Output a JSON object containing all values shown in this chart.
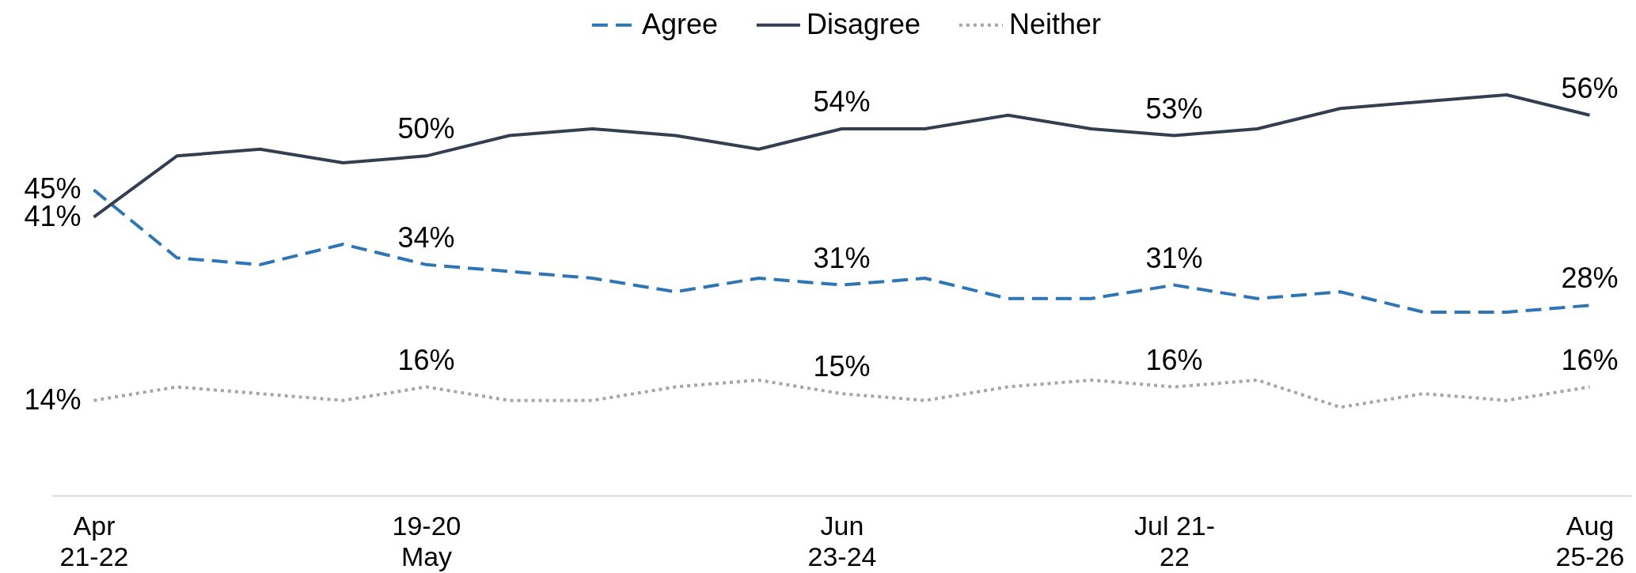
{
  "chart_data": {
    "type": "line",
    "categories": [
      "Apr 21-22",
      null,
      null,
      null,
      "19-20 May",
      null,
      null,
      null,
      null,
      "Jun 23-24",
      null,
      null,
      null,
      "Jul 21-22",
      null,
      null,
      null,
      null,
      "Aug 25-26"
    ],
    "series": [
      {
        "name": "Agree",
        "color": "#2e75b6",
        "line_style": "dashed",
        "values": [
          45,
          35,
          34,
          37,
          34,
          33,
          32,
          30,
          32,
          31,
          32,
          29,
          29,
          31,
          29,
          30,
          27,
          27,
          28
        ],
        "value_labels": [
          "45%",
          null,
          null,
          null,
          "34%",
          null,
          null,
          null,
          null,
          "31%",
          null,
          null,
          null,
          "31%",
          null,
          null,
          null,
          null,
          "28%"
        ]
      },
      {
        "name": "Disagree",
        "color": "#333f50",
        "line_style": "solid",
        "values": [
          41,
          50,
          51,
          49,
          50,
          53,
          54,
          53,
          51,
          54,
          54,
          56,
          54,
          53,
          54,
          57,
          58,
          59,
          56
        ],
        "value_labels": [
          "41%",
          null,
          null,
          null,
          "50%",
          null,
          null,
          null,
          null,
          "54%",
          null,
          null,
          null,
          "53%",
          null,
          null,
          null,
          null,
          "56%"
        ]
      },
      {
        "name": "Neither",
        "color": "#a6a6a6",
        "line_style": "dotted",
        "values": [
          14,
          16,
          15,
          14,
          16,
          14,
          14,
          16,
          17,
          15,
          14,
          16,
          17,
          16,
          17,
          13,
          15,
          14,
          16
        ],
        "value_labels": [
          "14%",
          null,
          null,
          null,
          "16%",
          null,
          null,
          null,
          null,
          "15%",
          null,
          null,
          null,
          "16%",
          null,
          null,
          null,
          null,
          "16%"
        ]
      }
    ],
    "tick_labels": "x",
    "legend": "top"
  }
}
